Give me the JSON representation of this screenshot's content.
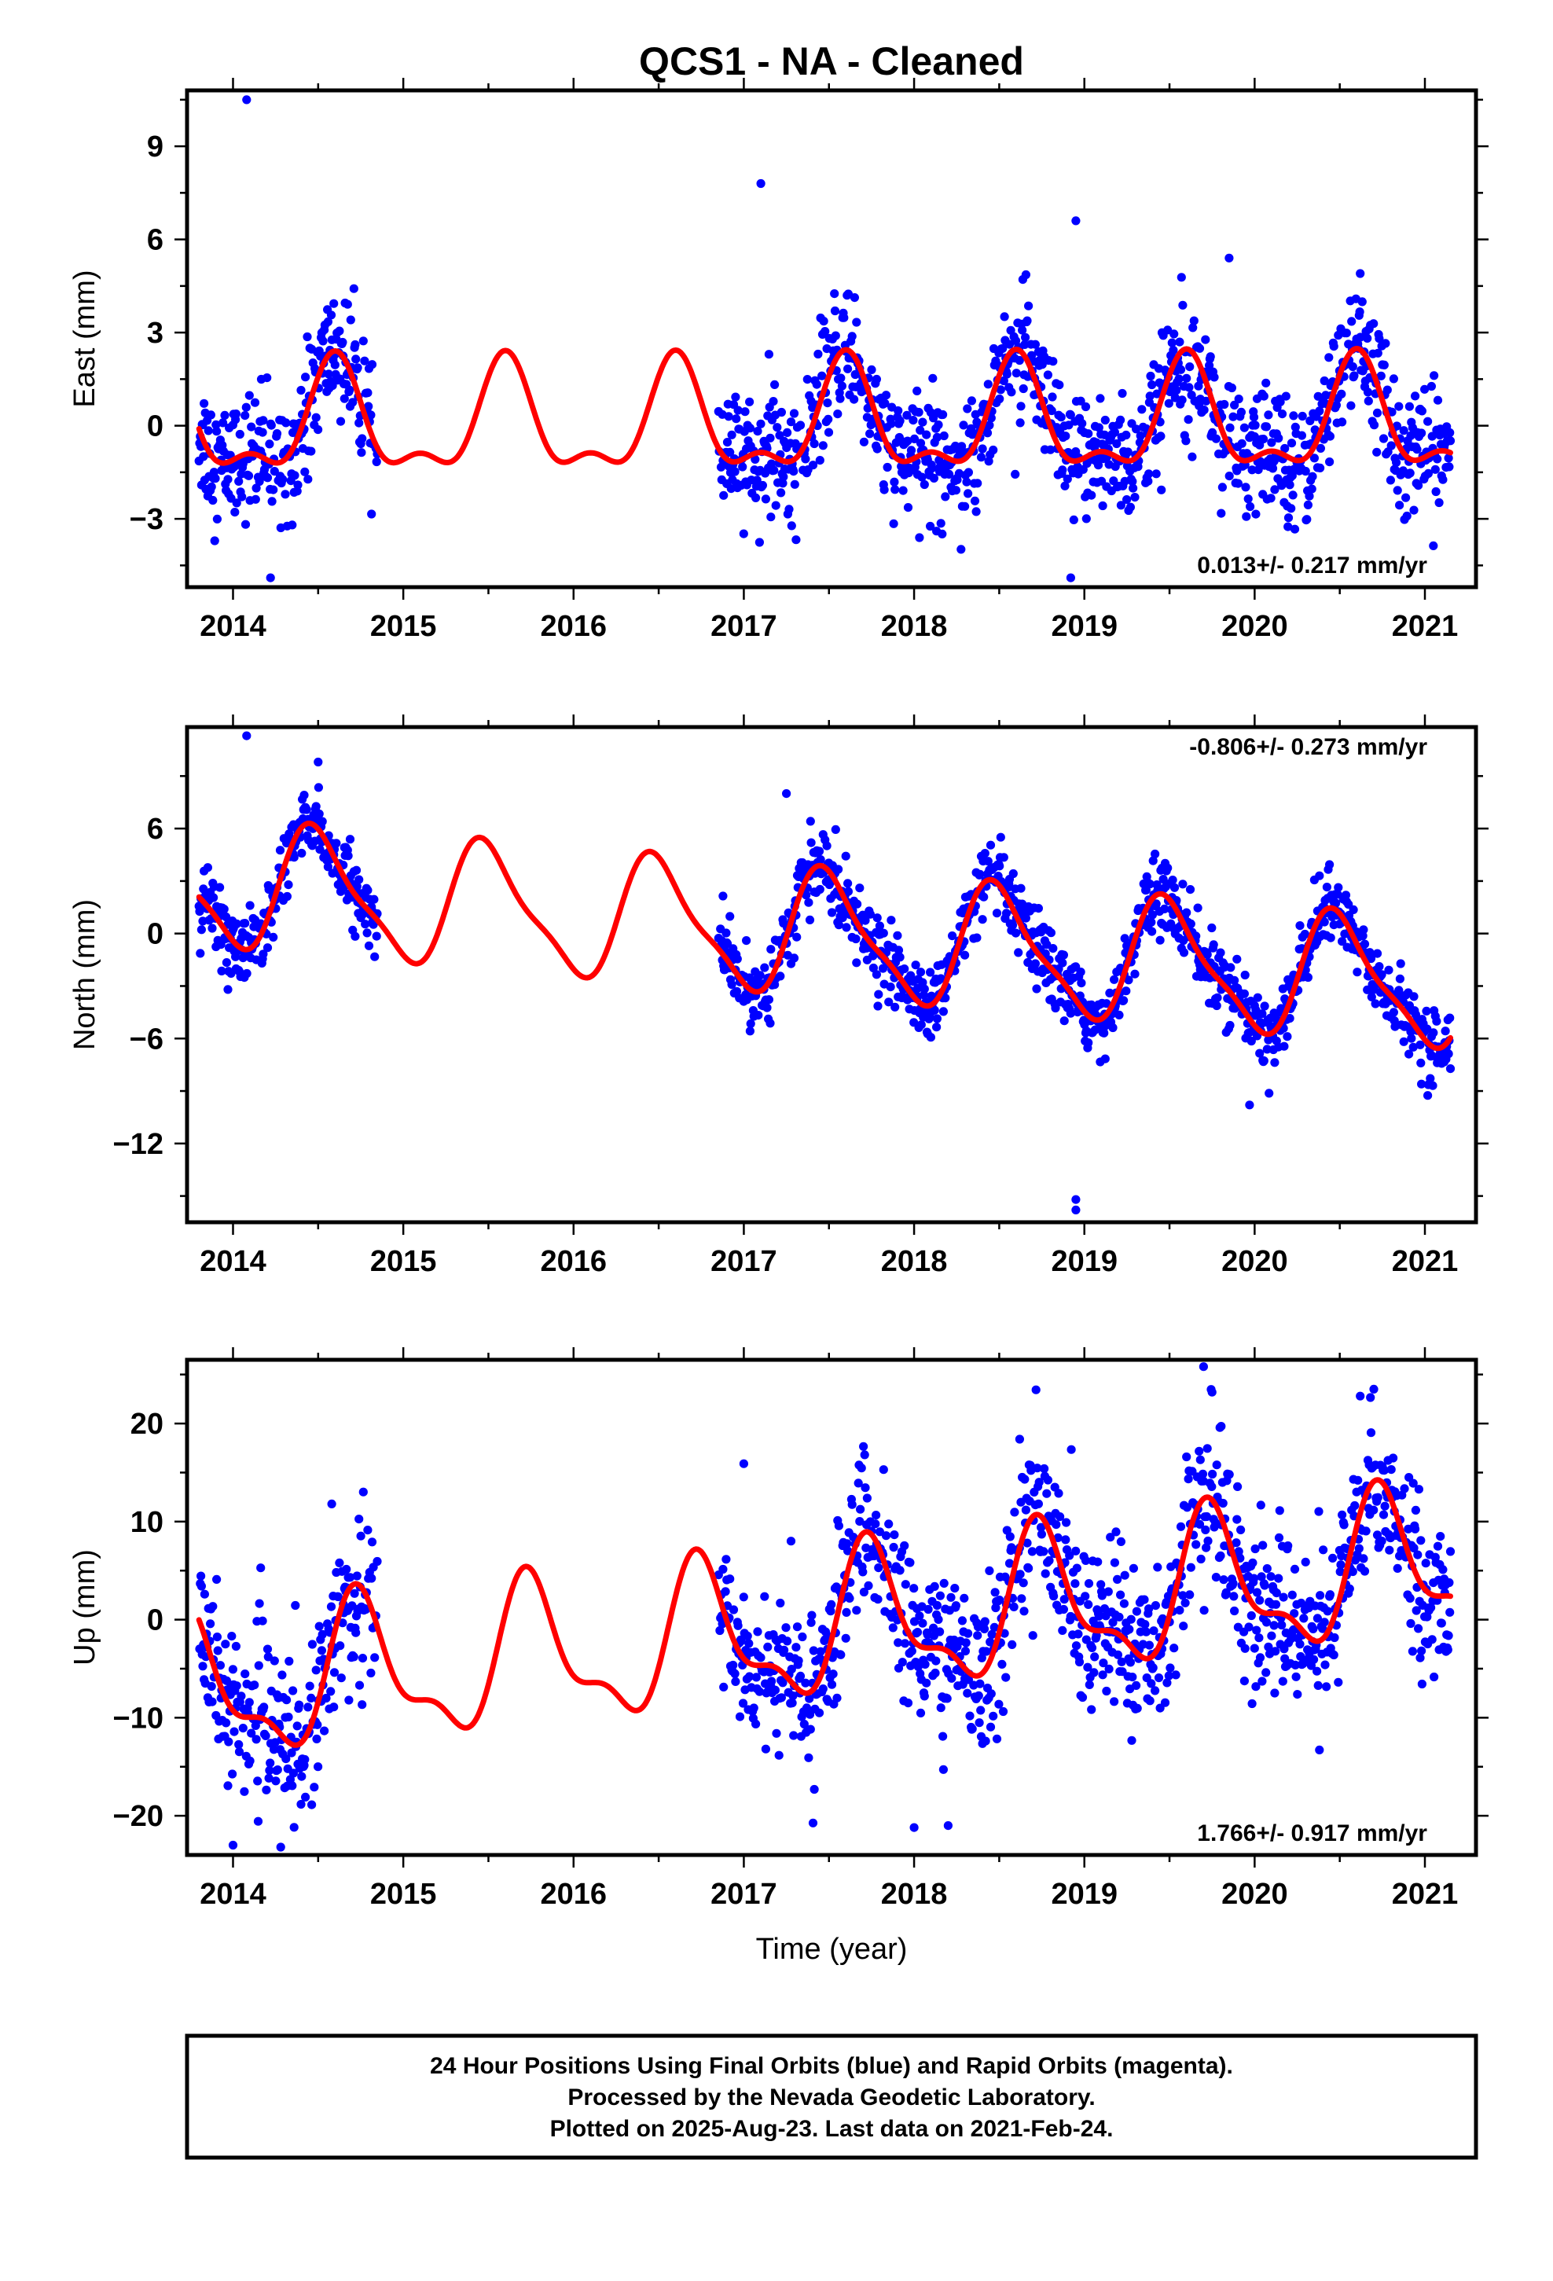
{
  "title": "QCS1  - NA - Cleaned",
  "xlabel": "Time (year)",
  "footer": {
    "line1": "24 Hour Positions Using Final Orbits (blue) and Rapid Orbits (magenta).",
    "line2": "Processed by the Nevada Geodetic Laboratory.",
    "line3": "Plotted on 2025-Aug-23. Last data on 2021-Feb-24."
  },
  "colors": {
    "final_orbits": "#0000ff",
    "model": "#ff0000",
    "frame": "#000000"
  },
  "chart_data": [
    {
      "type": "scatter",
      "component": "east",
      "ylabel": "East (mm)",
      "xlim": [
        2013.73,
        2021.3
      ],
      "ylim": [
        -5.2,
        10.8
      ],
      "yticks": [
        -3,
        0,
        3,
        6,
        9
      ],
      "xticks": [
        2014,
        2015,
        2016,
        2017,
        2018,
        2019,
        2020,
        2021
      ],
      "rate_label": "0.013+/- 0.217 mm/yr",
      "rate_position": "bottom-right",
      "data_gap": [
        2014.85,
        2016.85
      ],
      "model": {
        "offset": 0.0,
        "rate": 0.013,
        "annual_amp": 1.65,
        "annual_peak": 2014.6,
        "semiannual_amp": 0.75,
        "semiannual_peak": 2014.6
      },
      "scatter_sigma": 1.0,
      "outliers": [
        [
          2014.08,
          10.5
        ],
        [
          2017.1,
          7.8
        ],
        [
          2018.95,
          6.6
        ],
        [
          2019.85,
          5.4
        ],
        [
          2020.62,
          4.9
        ],
        [
          2014.22,
          -4.9
        ],
        [
          2018.92,
          -4.9
        ]
      ]
    },
    {
      "type": "scatter",
      "component": "north",
      "ylabel": "North (mm)",
      "xlim": [
        2013.73,
        2021.3
      ],
      "ylim": [
        -16.5,
        11.8
      ],
      "yticks": [
        -12,
        -6,
        0,
        6
      ],
      "xticks": [
        2014,
        2015,
        2016,
        2017,
        2018,
        2019,
        2020,
        2021
      ],
      "rate_label": "-0.806+/- 0.273 mm/yr",
      "rate_position": "top-right",
      "data_gap": [
        2014.85,
        2016.85
      ],
      "model": {
        "offset": 2.7,
        "rate": -0.806,
        "annual_amp": 3.4,
        "annual_peak": 2014.5,
        "semiannual_amp": 0.9,
        "semiannual_peak": 2014.4
      },
      "scatter_sigma": 1.0,
      "outliers": [
        [
          2014.08,
          11.3
        ],
        [
          2014.5,
          9.8
        ],
        [
          2017.25,
          8.0
        ],
        [
          2018.95,
          -15.2
        ],
        [
          2018.95,
          -15.8
        ],
        [
          2019.97,
          -9.8
        ],
        [
          2013.97,
          -3.2
        ]
      ]
    },
    {
      "type": "scatter",
      "component": "up",
      "ylabel": "Up (mm)",
      "xlim": [
        2013.73,
        2021.3
      ],
      "ylim": [
        -24,
        26.5
      ],
      "yticks": [
        -20,
        -10,
        0,
        10,
        20
      ],
      "xticks": [
        2014,
        2015,
        2016,
        2017,
        2018,
        2019,
        2020,
        2021
      ],
      "rate_label": "1.766+/- 0.917 mm/yr",
      "rate_position": "bottom-right",
      "data_gap": [
        2014.85,
        2016.85
      ],
      "model": {
        "offset": -7.0,
        "rate": 1.766,
        "annual_amp": 6.8,
        "annual_peak": 2014.75,
        "semiannual_amp": 2.8,
        "semiannual_peak": 2014.7
      },
      "scatter_sigma": 4.0,
      "outliers": [
        [
          2019.7,
          25.8
        ],
        [
          2019.75,
          23.2
        ],
        [
          2020.7,
          23.5
        ],
        [
          2020.62,
          22.8
        ],
        [
          2018.0,
          -21.2
        ],
        [
          2018.2,
          -21.0
        ],
        [
          2014.0,
          -23.0
        ],
        [
          2014.28,
          -23.2
        ],
        [
          2017.0,
          15.9
        ],
        [
          2014.58,
          11.8
        ],
        [
          2018.62,
          18.4
        ]
      ]
    }
  ]
}
